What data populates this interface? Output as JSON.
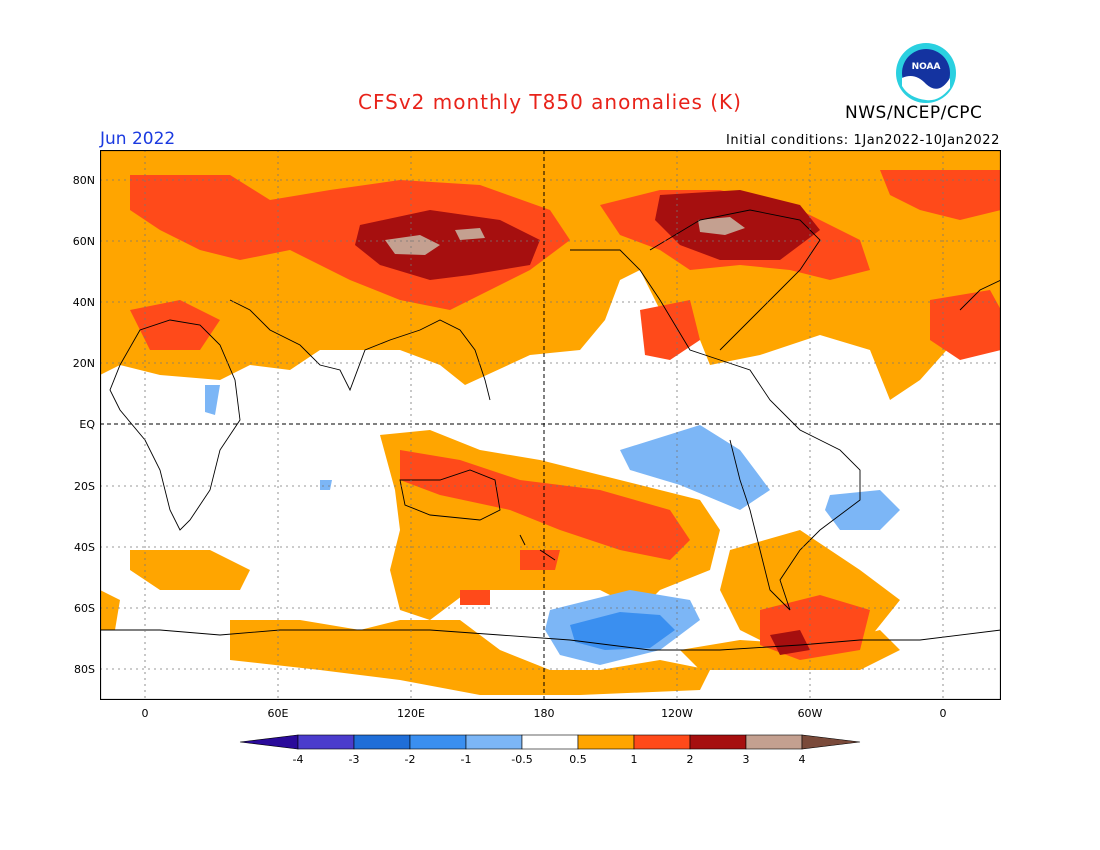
{
  "title": "CFSv2 monthly T850 anomalies (K)",
  "agency": "NWS/NCEP/CPC",
  "logo_text": "NOAA",
  "valid_month": "Jun 2022",
  "initial_conditions": "Initial conditions: 1Jan2022-10Jan2022",
  "lat_labels": [
    "80N",
    "60N",
    "40N",
    "20N",
    "EQ",
    "20S",
    "40S",
    "60S",
    "80S"
  ],
  "lon_labels": [
    "0",
    "60E",
    "120E",
    "180",
    "120W",
    "60W",
    "0"
  ],
  "colorbar": {
    "labels": [
      "-4",
      "-3",
      "-2",
      "-1",
      "-0.5",
      "0.5",
      "1",
      "2",
      "3",
      "4"
    ],
    "colors": [
      "#2a0a9a",
      "#4b3ccc",
      "#1f6ed8",
      "#3a8ff0",
      "#7cb6f6",
      "#ffffff",
      "#ffa500",
      "#ff4a1a",
      "#a60f0f",
      "#c4a090",
      "#7a4a3a"
    ]
  },
  "colors": {
    "title": "#e8231a",
    "month": "#1b3ae0"
  }
}
